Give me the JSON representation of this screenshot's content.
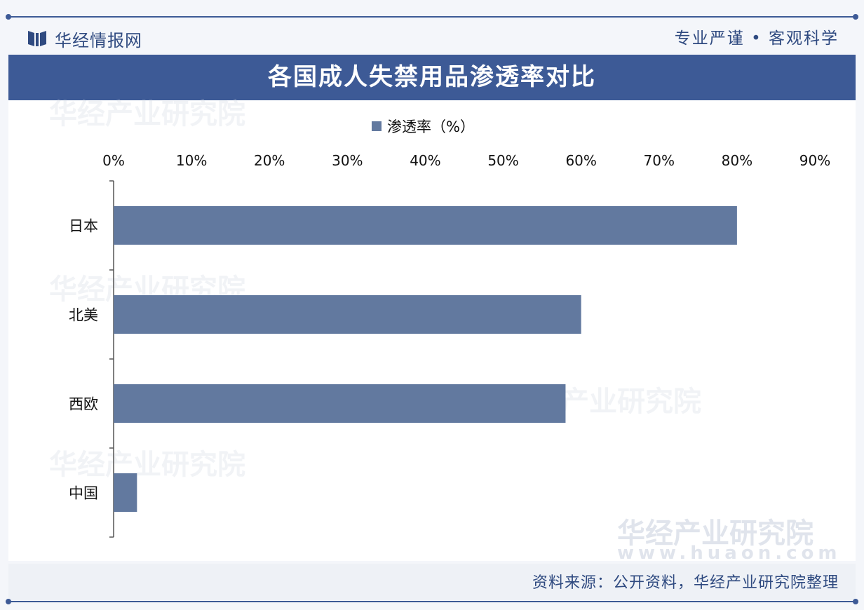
{
  "header": {
    "brand": "华经情报网",
    "motto": "专业严谨 • 客观科学"
  },
  "footer": {
    "source": "资料来源：公开资料，华经产业研究院整理"
  },
  "watermark": {
    "text": "华经产业研究院",
    "url": "www.huaon.com"
  },
  "colors": {
    "accent": "#3d5a96",
    "bar": "#62799f",
    "axis": "#555555"
  },
  "chart_data": {
    "type": "bar",
    "orientation": "horizontal",
    "title": "各国成人失禁用品渗透率对比",
    "categories": [
      "日本",
      "北美",
      "西欧",
      "中国"
    ],
    "series": [
      {
        "name": "渗透率（%）",
        "values": [
          80,
          60,
          58,
          3
        ]
      }
    ],
    "xlim": [
      0,
      90
    ],
    "x_ticks": [
      "0%",
      "10%",
      "20%",
      "30%",
      "40%",
      "50%",
      "60%",
      "70%",
      "80%",
      "90%"
    ],
    "x_tick_values": [
      0,
      10,
      20,
      30,
      40,
      50,
      60,
      70,
      80,
      90
    ],
    "x_axis_position": "top",
    "legend": "top",
    "grid": false
  }
}
